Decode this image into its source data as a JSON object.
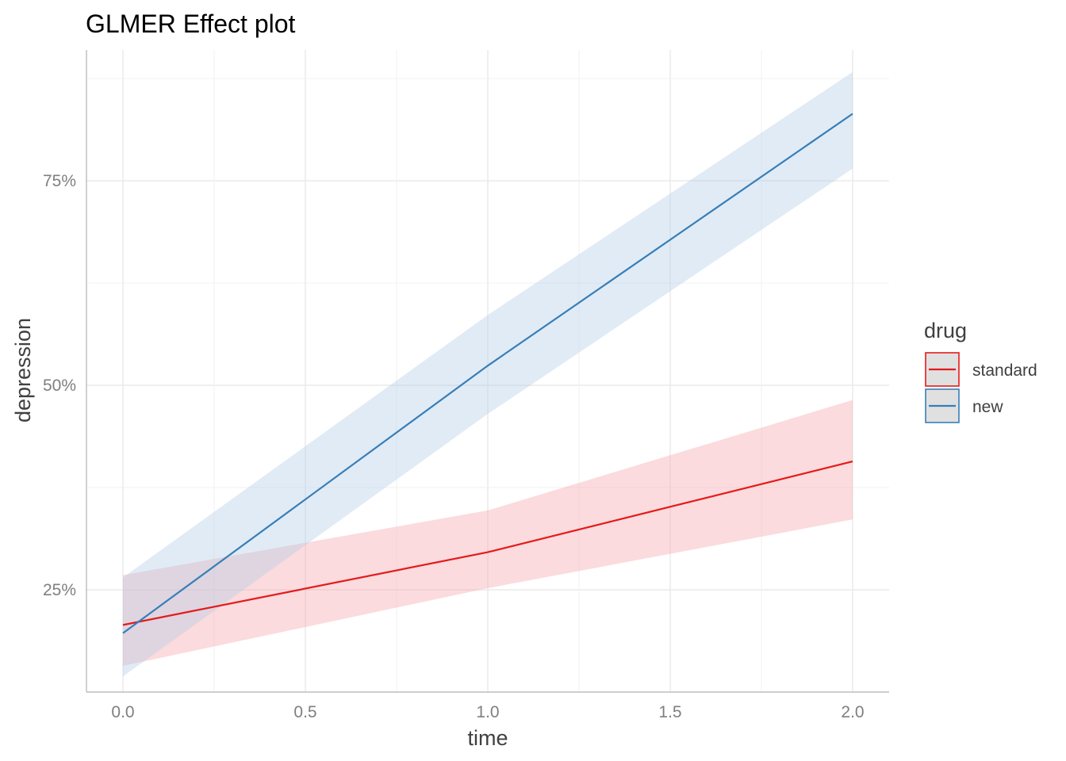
{
  "chart_data": {
    "type": "line",
    "title": "GLMER Effect plot",
    "xlabel": "time",
    "ylabel": "depression",
    "xlim": [
      -0.1,
      2.1
    ],
    "ylim": [
      0.125,
      0.91
    ],
    "x_ticks": [
      0.0,
      0.5,
      1.0,
      1.5,
      2.0
    ],
    "x_tick_labels": [
      "0.0",
      "0.5",
      "1.0",
      "1.5",
      "2.0"
    ],
    "y_ticks": [
      0.25,
      0.5,
      0.75
    ],
    "y_tick_labels": [
      "25%",
      "50%",
      "75%"
    ],
    "grid": true,
    "legend": {
      "title": "drug",
      "position": "right"
    },
    "series": [
      {
        "name": "standard",
        "color": "#E41A1C",
        "ribbon_color": "#F4A6AA",
        "x": [
          0.0,
          1.0,
          2.0
        ],
        "y": [
          0.207,
          0.296,
          0.407
        ],
        "lower": [
          0.157,
          0.252,
          0.336
        ],
        "upper": [
          0.268,
          0.347,
          0.482
        ]
      },
      {
        "name": "new",
        "color": "#377EB8",
        "ribbon_color": "#B4CEE6",
        "x": [
          0.0,
          1.0,
          2.0
        ],
        "y": [
          0.197,
          0.524,
          0.832
        ],
        "lower": [
          0.144,
          0.465,
          0.765
        ],
        "upper": [
          0.265,
          0.586,
          0.883
        ]
      }
    ]
  }
}
